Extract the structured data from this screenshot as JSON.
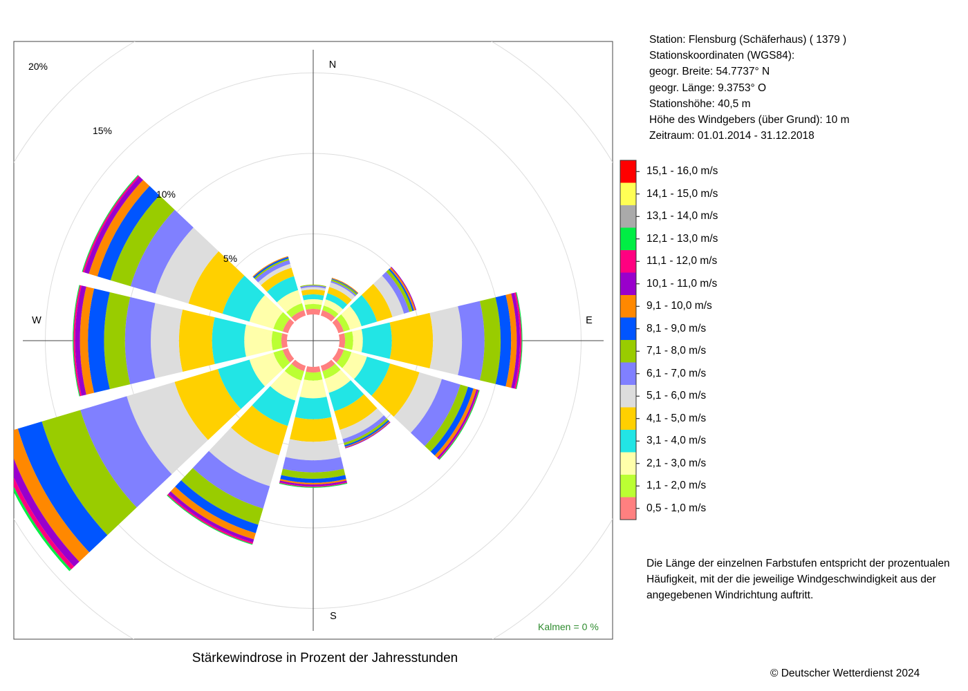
{
  "station_info": {
    "station": "Station:  Flensburg (Schäferhaus)  ( 1379 )",
    "coords_title": "Stationskoordinaten (WGS84):",
    "lat": "geogr. Breite: 54.7737° N",
    "lon": "geogr. Länge:   9.3753° O",
    "elevation": "Stationshöhe: 40,5 m",
    "sensor_height": "Höhe des Windgebers (über Grund): 10 m",
    "period": "Zeitraum: 01.01.2014 - 31.12.2018"
  },
  "note": "Die Länge der einzelnen Farbstufen entspricht der prozentualen Häufigkeit, mit der die jeweilige Windgeschwindigkeit aus der angegebenen Windrichtung auftritt.",
  "copyright": "© Deutscher Wetterdienst  2024",
  "calms": {
    "label": "Kalmen",
    "eq": "=",
    "value": "0 %"
  },
  "chart_data": {
    "type": "windrose",
    "title": "Stärkewindrose in Prozent der Jahresstunden",
    "directions": [
      "N",
      "NNE",
      "ENE",
      "E",
      "ESE",
      "SSE",
      "S",
      "SSW",
      "WSW",
      "W",
      "WNW",
      "NNW"
    ],
    "direction_angles": [
      0,
      30,
      60,
      90,
      120,
      150,
      180,
      210,
      240,
      270,
      300,
      330
    ],
    "compass_labels": [
      "N",
      "E",
      "S",
      "W"
    ],
    "radial_ticks": [
      5,
      10,
      15,
      20
    ],
    "radial_tick_labels": [
      "5%",
      "10%",
      "15%",
      "20%"
    ],
    "rmax": 20,
    "speed_classes": [
      "0,5 - 1,0 m/s",
      "1,1 - 2,0 m/s",
      "2,1 - 3,0 m/s",
      "3,1 - 4,0 m/s",
      "4,1 - 5,0 m/s",
      "5,1 - 6,0 m/s",
      "6,1 - 7,0 m/s",
      "7,1 - 8,0 m/s",
      "8,1 - 9,0 m/s",
      "9,1 - 10,0 m/s",
      "10,1 - 11,0 m/s",
      "11,1 - 12,0 m/s",
      "12,1 - 13,0 m/s",
      "13,1 - 14,0 m/s",
      "14,1 - 15,0 m/s",
      "15,1 - 16,0 m/s"
    ],
    "colors": [
      "#ff8080",
      "#bbff33",
      "#ffffaa",
      "#22e5e5",
      "#ffd000",
      "#dddddd",
      "#8080ff",
      "#99cc00",
      "#0055ff",
      "#ff8800",
      "#9900cc",
      "#ff0080",
      "#00ee44",
      "#aaaaaa",
      "#ffff55",
      "#ff0000"
    ],
    "segments": [
      [
        0.35,
        0.3,
        0.3,
        0.3,
        0.3,
        0.15,
        0.1,
        0.05,
        0,
        0,
        0,
        0,
        0,
        0,
        0,
        0
      ],
      [
        0.35,
        0.3,
        0.4,
        0.4,
        0.4,
        0.3,
        0.1,
        0.1,
        0.05,
        0.05,
        0,
        0,
        0,
        0,
        0,
        0
      ],
      [
        0.35,
        0.4,
        0.75,
        1.0,
        1.0,
        0.75,
        0.35,
        0.2,
        0.1,
        0.1,
        0.05,
        0,
        0,
        0,
        0,
        0
      ],
      [
        0.35,
        0.5,
        0.6,
        1.8,
        2.55,
        1.8,
        1.4,
        1.0,
        0.65,
        0.35,
        0.2,
        0.1,
        0.05,
        0,
        0,
        0
      ],
      [
        0.35,
        0.5,
        1.0,
        1.5,
        1.9,
        1.45,
        1.2,
        0.5,
        0.35,
        0.2,
        0.1,
        0.05,
        0.05,
        0,
        0,
        0
      ],
      [
        0.35,
        0.5,
        0.9,
        1.2,
        1.2,
        0.6,
        0.25,
        0.15,
        0.1,
        0.05,
        0.05,
        0,
        0,
        0,
        0,
        0
      ],
      [
        0.35,
        0.5,
        1.1,
        1.3,
        1.4,
        1.15,
        0.75,
        0.4,
        0.25,
        0.1,
        0.1,
        0.05,
        0.05,
        0,
        0,
        0
      ],
      [
        0.35,
        0.6,
        1.3,
        1.65,
        1.9,
        2.0,
        1.45,
        1.05,
        0.55,
        0.4,
        0.2,
        0.1,
        0.05,
        0,
        0,
        0
      ],
      [
        0.35,
        0.6,
        1.55,
        2.05,
        2.8,
        3.1,
        3.0,
        2.5,
        1.55,
        0.85,
        0.45,
        0.25,
        0.15,
        0,
        0,
        0
      ],
      [
        0.35,
        0.6,
        1.7,
        2.0,
        2.05,
        1.75,
        1.6,
        1.3,
        1.0,
        0.5,
        0.3,
        0.1,
        0.05,
        0,
        0,
        0
      ],
      [
        0.35,
        0.6,
        1.55,
        1.75,
        2.2,
        2.15,
        1.6,
        1.3,
        0.85,
        0.55,
        0.3,
        0.1,
        0.05,
        0,
        0,
        0
      ],
      [
        0.35,
        0.45,
        0.85,
        0.9,
        0.55,
        0.25,
        0.25,
        0.1,
        0.1,
        0.05,
        0,
        0,
        0,
        0,
        0,
        0
      ]
    ],
    "calm_percent": 0
  }
}
